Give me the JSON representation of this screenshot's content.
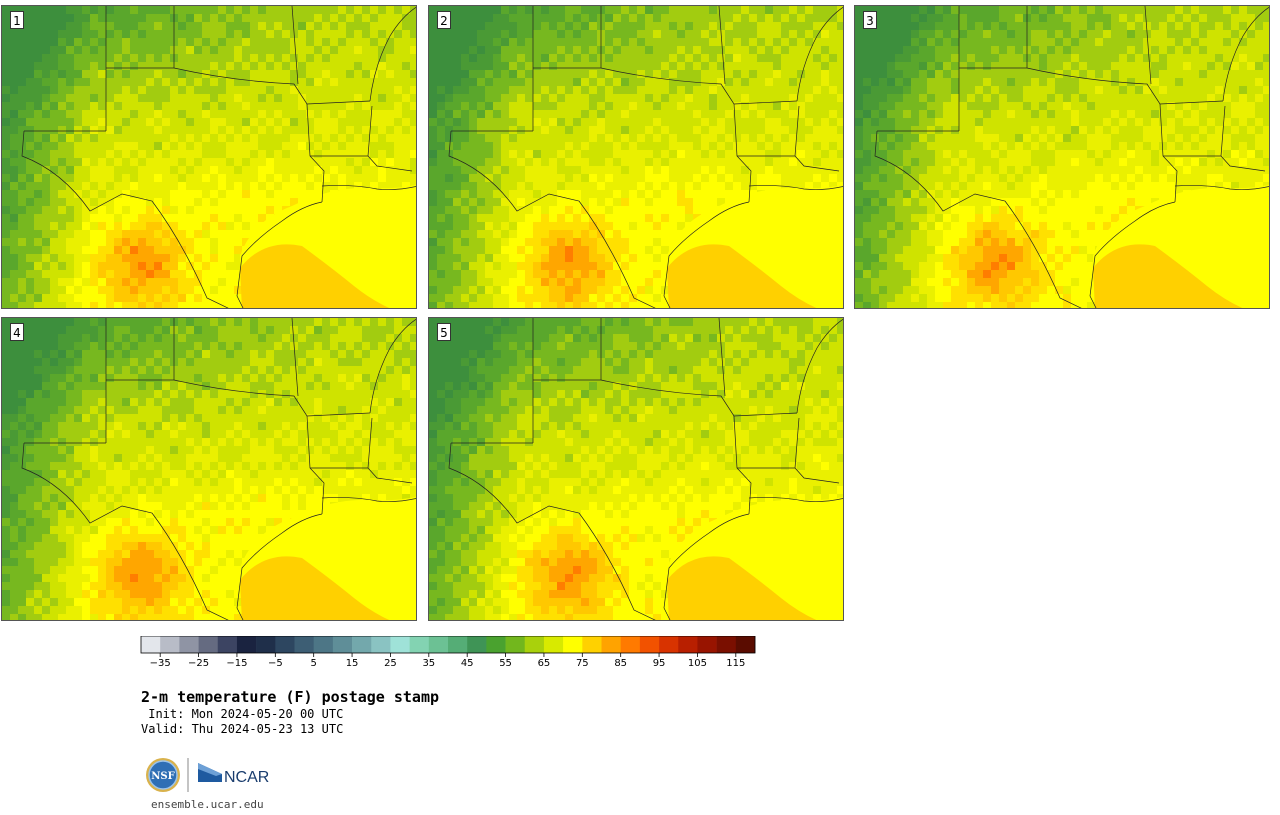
{
  "panels": [
    {
      "label": "1"
    },
    {
      "label": "2"
    },
    {
      "label": "3"
    },
    {
      "label": "4"
    },
    {
      "label": "5"
    }
  ],
  "colorbar": {
    "ticks": [
      "−35",
      "−25",
      "−15",
      "−5",
      "5",
      "15",
      "25",
      "35",
      "45",
      "55",
      "65",
      "75",
      "85",
      "95",
      "105",
      "115"
    ],
    "colors": [
      "#e3e6eb",
      "#b8bcc7",
      "#8f94a4",
      "#656b81",
      "#3c4462",
      "#1a2340",
      "#1f2f4a",
      "#2d4660",
      "#3d5e74",
      "#4d7686",
      "#5f8e98",
      "#73a8ac",
      "#8ac3c2",
      "#9fe2d8",
      "#83d3b2",
      "#6cc194",
      "#55ad76",
      "#3f9456",
      "#4aa22f",
      "#72b71d",
      "#a9d10c",
      "#d8ea00",
      "#ffff00",
      "#ffd100",
      "#ffa300",
      "#ff7a00",
      "#f25200",
      "#d83300",
      "#b81f00",
      "#981400",
      "#7a0f00",
      "#5a0c00"
    ],
    "range": [
      -40,
      120
    ],
    "step": 5
  },
  "title": "2-m temperature (F) postage stamp",
  "init": " Init: Mon 2024-05-20 00 UTC",
  "valid": "Valid: Thu 2024-05-23 13 UTC",
  "logos": {
    "nsf": "NSF",
    "ncar": "NCAR"
  },
  "site": "ensemble.ucar.edu"
}
